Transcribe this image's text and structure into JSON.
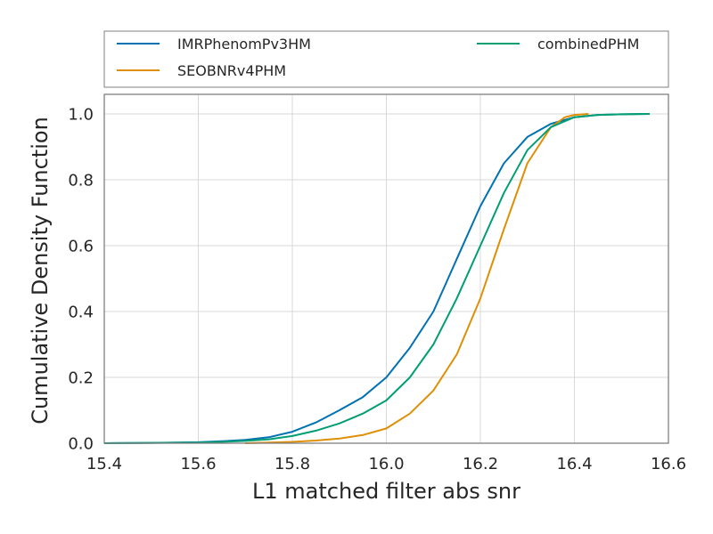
{
  "chart_data": {
    "type": "line",
    "xlabel": "L1 matched filter abs snr",
    "ylabel": "Cumulative Density Function",
    "xlim": [
      15.4,
      16.6
    ],
    "ylim": [
      0.0,
      1.0
    ],
    "xticks": [
      "15.4",
      "15.6",
      "15.8",
      "16.0",
      "16.2",
      "16.4",
      "16.6"
    ],
    "yticks": [
      "0.0",
      "0.2",
      "0.4",
      "0.6",
      "0.8",
      "1.0"
    ],
    "grid": true,
    "legend_placement": "above plot, two columns",
    "series": [
      {
        "name": "IMRPhenomPv3HM",
        "color": "#0072b2",
        "x": [
          15.4,
          15.5,
          15.6,
          15.65,
          15.7,
          15.75,
          15.8,
          15.85,
          15.9,
          15.95,
          16.0,
          16.05,
          16.1,
          16.15,
          16.2,
          16.25,
          16.3,
          16.35,
          16.4,
          16.45,
          16.5,
          16.56
        ],
        "y": [
          0.0,
          0.001,
          0.003,
          0.006,
          0.01,
          0.018,
          0.035,
          0.063,
          0.1,
          0.14,
          0.2,
          0.29,
          0.4,
          0.56,
          0.72,
          0.85,
          0.93,
          0.97,
          0.99,
          0.997,
          0.999,
          1.0
        ]
      },
      {
        "name": "SEOBNRv4PHM",
        "color": "#de8f05",
        "x": [
          15.7,
          15.75,
          15.8,
          15.85,
          15.9,
          15.95,
          16.0,
          16.05,
          16.1,
          16.15,
          16.2,
          16.25,
          16.3,
          16.35,
          16.38,
          16.4,
          16.43
        ],
        "y": [
          0.0,
          0.002,
          0.004,
          0.008,
          0.014,
          0.025,
          0.045,
          0.09,
          0.16,
          0.27,
          0.44,
          0.65,
          0.85,
          0.96,
          0.99,
          0.997,
          1.0
        ]
      },
      {
        "name": "combinedPHM",
        "color": "#029e73",
        "x": [
          15.4,
          15.5,
          15.6,
          15.65,
          15.7,
          15.75,
          15.8,
          15.85,
          15.9,
          15.95,
          16.0,
          16.05,
          16.1,
          16.15,
          16.2,
          16.25,
          16.3,
          16.35,
          16.4,
          16.45,
          16.5,
          16.56
        ],
        "y": [
          0.0,
          0.001,
          0.002,
          0.004,
          0.007,
          0.012,
          0.022,
          0.038,
          0.06,
          0.09,
          0.13,
          0.2,
          0.3,
          0.44,
          0.6,
          0.76,
          0.89,
          0.96,
          0.99,
          0.997,
          0.999,
          1.0
        ]
      }
    ]
  }
}
